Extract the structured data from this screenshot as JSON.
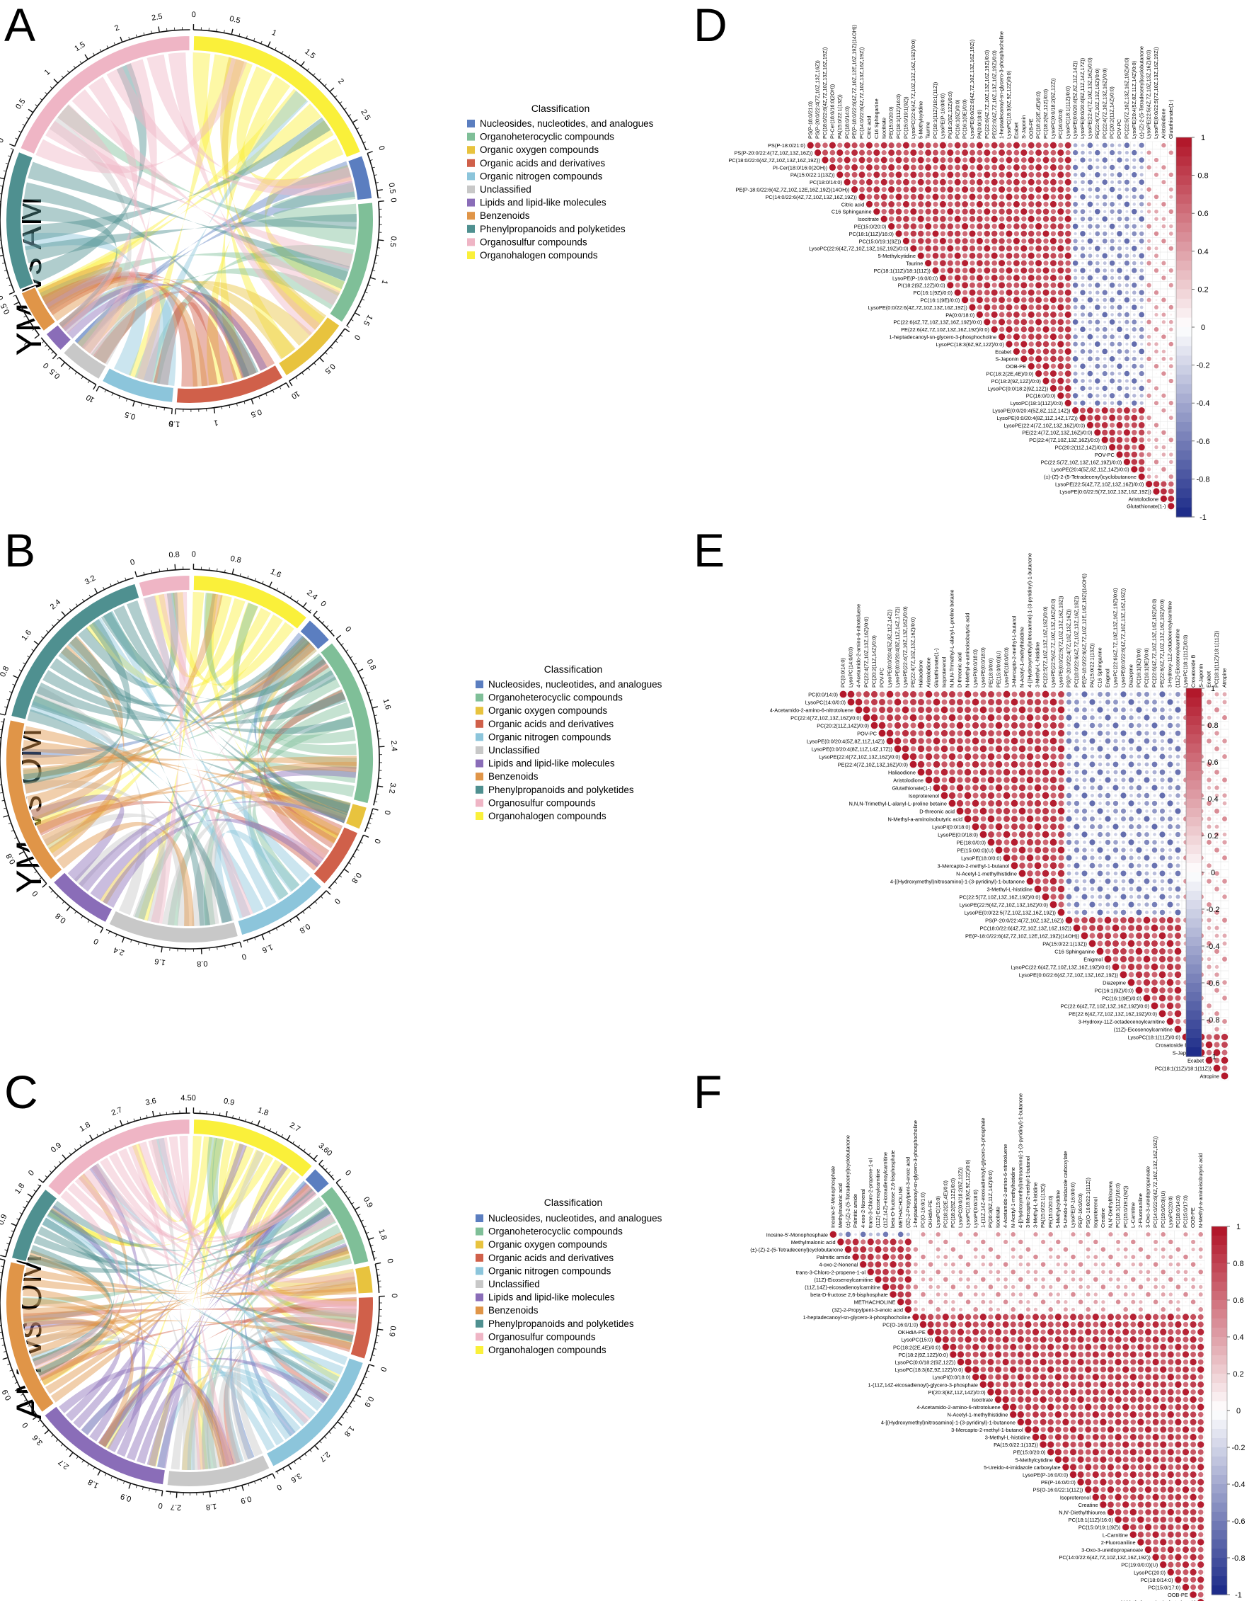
{
  "panels": {
    "A": {
      "letter": "A",
      "side_label": "YM vs AM",
      "segments": [
        {
          "class": "Nucleosides, nucleotides, and analogues",
          "color": "#5B7EC0",
          "value": 0.6,
          "ticks": [
            "0",
            "0.5"
          ]
        },
        {
          "class": "Organoheterocyclic compounds",
          "color": "#7FBF98",
          "value": 1.7,
          "ticks": [
            "0",
            "0.5",
            "1",
            "1.5"
          ]
        },
        {
          "class": "Organic oxygen compounds",
          "color": "#E8C33E",
          "value": 1.0,
          "ticks": [
            "0",
            "0.5",
            "1"
          ]
        },
        {
          "class": "Organic acids and derivatives",
          "color": "#D0604A",
          "value": 1.5,
          "ticks": [
            "0",
            "0.5",
            "1",
            "1.5"
          ]
        },
        {
          "class": "Organic nitrogen compounds",
          "color": "#8CC5DB",
          "value": 1.0,
          "ticks": [
            "0",
            "0.5",
            "1"
          ]
        },
        {
          "class": "Unclassified",
          "color": "#C8C8C8",
          "value": 0.6,
          "ticks": [
            "0",
            "0.5"
          ]
        },
        {
          "class": "Lipids and lipid-like molecules",
          "color": "#8A6DB8",
          "value": 0.3,
          "ticks": [
            "0"
          ]
        },
        {
          "class": "Benzenoids",
          "color": "#E09548",
          "value": 0.6,
          "ticks": [
            "0",
            "0.5"
          ]
        },
        {
          "class": "Phenylpropanoids and polyketides",
          "color": "#4F9090",
          "value": 1.9,
          "ticks": [
            "0",
            "0.5",
            "1",
            "1.5"
          ]
        },
        {
          "class": "Organosulfur compounds",
          "color": "#EFB5C5",
          "value": 2.9,
          "ticks": [
            "0",
            "0.5",
            "1",
            "1.5",
            "2",
            "2.5"
          ]
        },
        {
          "class": "Organohalogen compounds",
          "color": "#FAF03A",
          "value": 2.9,
          "ticks": [
            "0",
            "0.5",
            "1",
            "1.5",
            "2",
            "2.5"
          ]
        }
      ]
    },
    "B": {
      "letter": "B",
      "side_label": "YM vs OM",
      "segments": [
        {
          "class": "Nucleosides, nucleotides, and analogues",
          "color": "#5B7EC0",
          "value": 0.6,
          "ticks": [
            "0"
          ]
        },
        {
          "class": "Organoheterocyclic compounds",
          "color": "#7FBF98",
          "value": 3.6,
          "ticks": [
            "0",
            "0.8",
            "1.6",
            "2.4",
            "3.2"
          ]
        },
        {
          "class": "Organic oxygen compounds",
          "color": "#E8C33E",
          "value": 0.5,
          "ticks": [
            "0"
          ]
        },
        {
          "class": "Organic acids and derivatives",
          "color": "#D0604A",
          "value": 1.3,
          "ticks": [
            "0",
            "0.8"
          ]
        },
        {
          "class": "Organic nitrogen compounds",
          "color": "#8CC5DB",
          "value": 2.0,
          "ticks": [
            "0",
            "0.8",
            "1.6"
          ]
        },
        {
          "class": "Unclassified",
          "color": "#C8C8C8",
          "value": 2.8,
          "ticks": [
            "0",
            "0.8",
            "1.6",
            "2.4"
          ]
        },
        {
          "class": "Lipids and lipid-like molecules",
          "color": "#8A6DB8",
          "value": 1.4,
          "ticks": [
            "0",
            "0.8"
          ]
        },
        {
          "class": "Benzenoids",
          "color": "#E09548",
          "value": 3.6,
          "ticks": [
            "0",
            "0.8",
            "1.6",
            "2.4",
            "3.2"
          ]
        },
        {
          "class": "Phenylpropanoids and polyketides",
          "color": "#4F9090",
          "value": 4.0,
          "ticks": [
            "0",
            "0.8",
            "1.6",
            "2.4",
            "3.2"
          ]
        },
        {
          "class": "Organosulfur compounds",
          "color": "#EFB5C5",
          "value": 1.1,
          "ticks": [
            "0",
            "0.8"
          ]
        },
        {
          "class": "Organohalogen compounds",
          "color": "#FAF03A",
          "value": 2.6,
          "ticks": [
            "0",
            "0.8",
            "1.6",
            "2.4"
          ]
        }
      ]
    },
    "C": {
      "letter": "C",
      "side_label": "AM vs OM",
      "segments": [
        {
          "class": "Nucleosides, nucleotides, and analogues",
          "color": "#5B7EC0",
          "value": 0.6,
          "ticks": [
            "0"
          ]
        },
        {
          "class": "Organoheterocyclic compounds",
          "color": "#7FBF98",
          "value": 2.4,
          "ticks": [
            "0",
            "0.9",
            "1.8"
          ]
        },
        {
          "class": "Organic oxygen compounds",
          "color": "#E8C33E",
          "value": 0.8,
          "ticks": [
            "0"
          ]
        },
        {
          "class": "Organic acids and derivatives",
          "color": "#D0604A",
          "value": 1.8,
          "ticks": [
            "0",
            "0.9"
          ]
        },
        {
          "class": "Organic nitrogen compounds",
          "color": "#8CC5DB",
          "value": 4.0,
          "ticks": [
            "0",
            "0.9",
            "1.8",
            "2.7",
            "3.6"
          ]
        },
        {
          "class": "Unclassified",
          "color": "#C8C8C8",
          "value": 3.0,
          "ticks": [
            "0",
            "0.9",
            "1.8",
            "2.7"
          ]
        },
        {
          "class": "Lipids and lipid-like molecules",
          "color": "#8A6DB8",
          "value": 4.0,
          "ticks": [
            "0",
            "0.9",
            "1.8",
            "2.7",
            "3.6"
          ]
        },
        {
          "class": "Benzenoids",
          "color": "#E09548",
          "value": 4.5,
          "ticks": [
            "0",
            "0.9",
            "1.8",
            "2.7",
            "3.6",
            "4.5"
          ]
        },
        {
          "class": "Phenylpropanoids and polyketides",
          "color": "#4F9090",
          "value": 2.2,
          "ticks": [
            "0",
            "0.9",
            "1.8"
          ]
        },
        {
          "class": "Organosulfur compounds",
          "color": "#EFB5C5",
          "value": 4.6,
          "ticks": [
            "0",
            "0.9",
            "1.8",
            "2.7",
            "3.6",
            "4.5"
          ]
        },
        {
          "class": "Organohalogen compounds",
          "color": "#FAF03A",
          "value": 3.7,
          "ticks": [
            "0",
            "0.9",
            "1.8",
            "2.7",
            "3.6"
          ]
        }
      ]
    },
    "D": {
      "letter": "D",
      "labels": [
        "PS(P-18:0/21:0)",
        "PS(P-20:0/22:4(7Z,10Z,13Z,16Z))",
        "PC(18:0/22:6(4Z,7Z,10Z,13Z,16Z,19Z))",
        "PI-Cer(18:0/16:0(2OH))",
        "PA(15:0/22:1(13Z))",
        "PC(18:0/14:0)",
        "PE(P-18:0/22:6(4Z,7Z,10Z,12E,16Z,19Z)(14OH))",
        "PC(14:0/22:6(4Z,7Z,10Z,13Z,16Z,19Z))",
        "Citric acid",
        "C16 Sphinganine",
        "Isocitrate",
        "PE(15:0/20:0)",
        "PC(18:1(11Z)/16:0)",
        "PC(15:0/19:1(9Z))",
        "LysoPC(22:6(4Z,7Z,10Z,13Z,16Z,19Z)/0:0)",
        "5-Methylcytidine",
        "Taurine",
        "PC(18:1(11Z)/18:1(11Z))",
        "LysoPE(P-16:0/0:0)",
        "PI(18:2(9Z,12Z)/0:0)",
        "PC(16:1(9Z)/0:0)",
        "PC(16:1(9E)/0:0)",
        "LysoPE(0:0/22:6(4Z,7Z,10Z,13Z,16Z,19Z))",
        "PA(0:0/18:0)",
        "PC(22:6(4Z,7Z,10Z,13Z,16Z,19Z)/0:0)",
        "PE(22:6(4Z,7Z,10Z,13Z,16Z,19Z)/0:0)",
        "1-heptadecanoyl-sn-glycero-3-phosphocholine",
        "LysoPC(18:3(6Z,9Z,12Z)/0:0)",
        "Ecabet",
        "S-Japonin",
        "OOB-PE",
        "PC(18:2(2E,4E)/0:0)",
        "PC(18:2(9Z,12Z)/0:0)",
        "LysoPC(0:0/18:2(9Z,12Z))",
        "PC(16:0/0:0)",
        "LysoPC(18:1(11Z)/0:0)",
        "LysoPE(0:0/20:4(5Z,8Z,11Z,14Z))",
        "LysoPE(0:0/20:4(8Z,11Z,14Z,17Z))",
        "LysoPE(22:4(7Z,10Z,13Z,16Z)/0:0)",
        "PE(22:4(7Z,10Z,13Z,16Z)/0:0)",
        "PC(22:4(7Z,10Z,13Z,16Z)/0:0)",
        "PC(20:2(11Z,14Z)/0:0)",
        "POV-PC",
        "PC(22:5(7Z,10Z,13Z,16Z,19Z)/0:0)",
        "LysoPE(20:4(5Z,8Z,11Z,14Z)/0:0)",
        "(±)-(Z)-2-(5-Tetradecenyl)cyclobutanone",
        "LysoPE(22:5(4Z,7Z,10Z,13Z,16Z)/0:0)",
        "LysoPE(0:0/22:5(7Z,10Z,13Z,16Z,19Z))",
        "Aristolodione",
        "Glutathionate(1-)"
      ],
      "blocks": [
        [
          0,
          36
        ],
        [
          36,
          46
        ],
        [
          46,
          50
        ]
      ],
      "ticks": [
        "1",
        "0.8",
        "0.6",
        "0.4",
        "0.2",
        "0",
        "-0.2",
        "-0.4",
        "-0.6",
        "-0.8",
        "-1"
      ]
    },
    "E": {
      "letter": "E",
      "labels": [
        "PC(0:0/14:0)",
        "LysoPC(14:0/0:0)",
        "4-Acetamido-2-amino-6-nitrotoluene",
        "PC(22:4(7Z,10Z,13Z,16Z)/0:0)",
        "PC(20:2(11Z,14Z)/0:0)",
        "POV-PC",
        "LysoPE(0:0/20:4(5Z,8Z,11Z,14Z))",
        "LysoPE(0:0/20:4(8Z,11Z,14Z,17Z))",
        "LysoPE(22:4(7Z,10Z,13Z,16Z)/0:0)",
        "PE(22:4(7Z,10Z,13Z,16Z)/0:0)",
        "Haliaodione",
        "Aristolodione",
        "Glutathionate(1-)",
        "Isoproterenol",
        "N,N,N-Trimethyl-L-alanyl-L-proline betaine",
        "D-threonic acid",
        "N-Methyl-a-aminoisobutyric acid",
        "LysoPI(0:0/18:0)",
        "LysoPE(0:0/18:0)",
        "PE(18:0/0:0)",
        "PE(15:0/0:0)(U)",
        "LysoPE(18:0/0:0)",
        "3-Mercapto-2-methyl-1-butanol",
        "N-Acetyl-1-methylhistidine",
        "4-[(Hydroxymethyl)nitrosamino]-1-(3-pyridinyl)-1-butanone",
        "3-Methyl-L-histidine",
        "PC(22:5(7Z,10Z,13Z,16Z,19Z)/0:0)",
        "LysoPE(22:5(4Z,7Z,10Z,13Z,16Z)/0:0)",
        "LysoPE(0:0/22:5(7Z,10Z,13Z,16Z,19Z))",
        "PS(P-20:0/22:4(7Z,10Z,13Z,16Z))",
        "PC(18:0/22:6(4Z,7Z,10Z,13Z,16Z,19Z))",
        "PE(P-18:0/22:6(4Z,7Z,10Z,12E,16Z,19Z)(14OH))",
        "PA(15:0/22:1(13Z))",
        "C16 Sphinganine",
        "Enigmol",
        "LysoPC(22:6(4Z,7Z,10Z,13Z,16Z,19Z)/0:0)",
        "LysoPE(0:0/22:6(4Z,7Z,10Z,13Z,16Z,19Z))",
        "Diazepine",
        "PC(16:1(9Z)/0:0)",
        "PC(16:1(9E)/0:0)",
        "PC(22:6(4Z,7Z,10Z,13Z,16Z,19Z)/0:0)",
        "PE(22:6(4Z,7Z,10Z,13Z,16Z,19Z)/0:0)",
        "3-Hydroxy-11Z-octadecenoylcarnitine",
        "(11Z)-Eicosenoylcarnitine",
        "LysoPC(18:1(11Z)/0:0)",
        "Crosatoside B",
        "S-Japonin",
        "Ecabet",
        "PC(18:1(11Z)/18:1(11Z))",
        "Atropine"
      ],
      "blocks": [
        [
          0,
          29
        ],
        [
          29,
          44
        ],
        [
          44,
          50
        ]
      ],
      "ticks": [
        "1",
        "0.8",
        "0.6",
        "0.4",
        "0.2",
        "0",
        "-0.2",
        "-0.4",
        "-0.6",
        "-0.8",
        "-1"
      ]
    },
    "F": {
      "letter": "F",
      "labels": [
        "Inosine-5'-Monophosphate",
        "Methylmalonic acid",
        "(±)-(Z)-2-(5-Tetradecenyl)cyclobutanone",
        "Palmitic amide",
        "4-oxo-2-Nonenal",
        "trans-3-Chloro-2-propene-1-ol",
        "(11Z)-Eicosenoylcarnitine",
        "(11Z,14Z)-eicosadienoylcarnitine",
        "beta-D-fructose 2,6-bisphosphate",
        "METHACHOLINE",
        "(3Z)-2-Propylpent-3-enoic acid",
        "1-heptadecanoyl-sn-glycero-3-phosphocholine",
        "PC(O-16:0/1:0)",
        "OKHdiA-PE",
        "LysoPC(15:0)",
        "PC(18:2(2E,4E)/0:0)",
        "PC(18:2(9Z,12Z)/0:0)",
        "LysoPC(0:0/18:2(9Z,12Z))",
        "LysoPC(18:3(6Z,9Z,12Z)/0:0)",
        "LysoPI(0:0/18:0)",
        "1-(11Z,14Z-eicosadienoyl)-glycero-3-phosphate",
        "PI(20:3(8Z,11Z,14Z)/0:0)",
        "Isocitrate",
        "4-Acetamido-2-amino-6-nitrotoluene",
        "N-Acetyl-1-methylhistidine",
        "4-[(Hydroxymethyl)nitrosamino]-1-(3-pyridinyl)-1-butanone",
        "3-Mercapto-2-methyl-1-butanol",
        "3-Methyl-L-histidine",
        "PA(15:0/22:1(13Z))",
        "PE(15:0/20:0)",
        "5-Methylcytidine",
        "5-Ureido-4-imidazole carboxylate",
        "LysoPE(P-16:0/0:0)",
        "PE(P-16:0/0:0)",
        "PS(O-16:0/22:1(11Z))",
        "Isoproterenol",
        "Creatine",
        "N,N'-Diethylthiourea",
        "PC(18:1(11Z)/16:0)",
        "PC(15:0/19:1(9Z))",
        "L-Carnitine",
        "2-Fluoroaniline",
        "3-Oxo-3-ureidopropanoate",
        "PC(14:0/22:6(4Z,7Z,10Z,13Z,16Z,19Z))",
        "PC(19:0/0:0)(U)",
        "LysoPC(20:0)",
        "PC(18:0/14:0)",
        "PC(15:0/17:0)",
        "OOB-PE",
        "N-Methyl-a-aminoisobutyric acid"
      ],
      "blocks": [
        [
          0,
          1
        ],
        [
          1,
          11
        ],
        [
          11,
          50
        ]
      ],
      "ticks": [
        "1",
        "0.8",
        "0.6",
        "0.4",
        "0.2",
        "0",
        "-0.2",
        "-0.4",
        "-0.6",
        "-0.8",
        "-1"
      ]
    }
  },
  "legend_title": "Classification",
  "colors": {
    "pos": "#B2182B",
    "neg": "#1F2D8A",
    "mid": "#FFFFFF"
  }
}
